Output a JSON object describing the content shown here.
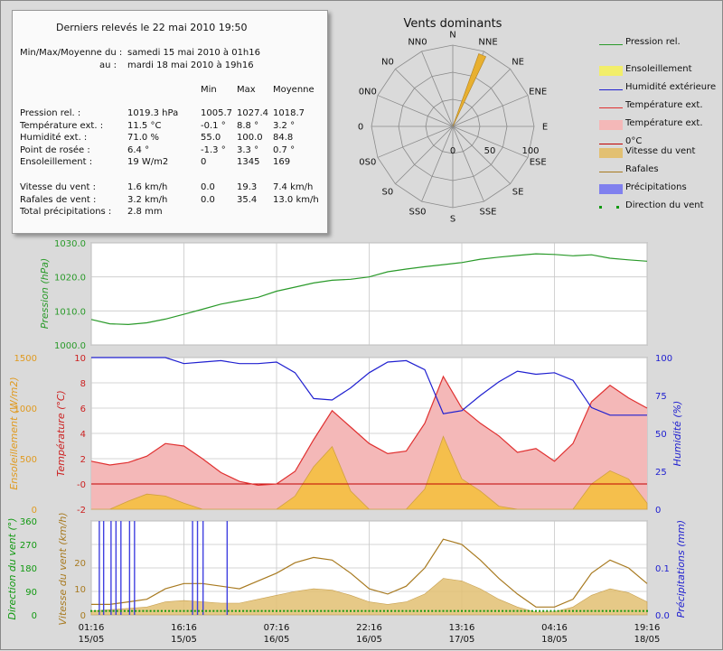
{
  "summary": {
    "title": "Derniers relevés le 22 mai 2010 19:50",
    "period_label_from": "Min/Max/Moyenne du :",
    "period_from": "samedi 15 mai 2010 à 01h16",
    "period_label_to": "au :",
    "period_to": "mardi 18 mai 2010 à 19h16",
    "headers": [
      "Min",
      "Max",
      "Moyenne"
    ],
    "rows": [
      {
        "label": "Pression rel. :",
        "current": "1019.3 hPa",
        "min": "1005.7",
        "max": "1027.4",
        "avg": "1018.7"
      },
      {
        "label": "Température ext. :",
        "current": "11.5 °C",
        "min": "-0.1 °",
        "max": "8.8 °",
        "avg": "3.2 °"
      },
      {
        "label": "Humidité ext. :",
        "current": "71.0 %",
        "min": "55.0",
        "max": "100.0",
        "avg": "84.8"
      },
      {
        "label": "Point de rosée :",
        "current": "6.4 °",
        "min": "-1.3 °",
        "max": "3.3 °",
        "avg": "0.7 °"
      },
      {
        "label": "Ensoleillement :",
        "current": "19 W/m2",
        "min": "0",
        "max": "1345",
        "avg": "169"
      }
    ],
    "wind_rows": [
      {
        "label": "Vitesse du vent :",
        "current": "1.6 km/h",
        "min": "0.0",
        "max": "19.3",
        "avg": "7.4 km/h"
      },
      {
        "label": "Rafales de vent :",
        "current": "3.2 km/h",
        "min": "0.0",
        "max": "35.4",
        "avg": "13.0 km/h"
      },
      {
        "label": "Total précipitations :",
        "current": "2.8 mm",
        "min": "",
        "max": "",
        "avg": ""
      }
    ]
  },
  "wind_rose": {
    "title": "Vents dominants",
    "directions": [
      "N",
      "NNE",
      "NE",
      "ENE",
      "E",
      "ESE",
      "SE",
      "SSE",
      "S",
      "SS0",
      "S0",
      "0S0",
      "0",
      "0N0",
      "N0",
      "NN0"
    ],
    "radial_labels": [
      "0",
      "50",
      "100"
    ],
    "dominant_direction_deg": 22.5,
    "dominant_value": 100,
    "color": "#e8b030"
  },
  "legend": [
    {
      "label": "Pression rel.",
      "type": "line",
      "color": "#2a9a2a"
    },
    {
      "label": "Ensoleillement",
      "type": "box",
      "color": "#f2ee6a"
    },
    {
      "label": "Humidité extérieure",
      "type": "line",
      "color": "#2020d0"
    },
    {
      "label": "Température ext.",
      "type": "line",
      "color": "#e03030"
    },
    {
      "label": "Température ext.",
      "type": "box",
      "color": "#f4b8b8"
    },
    {
      "label": "0°C",
      "type": "line",
      "color": "#c00000"
    },
    {
      "label": "Vitesse du vent",
      "type": "box",
      "color": "#e2c072"
    },
    {
      "label": "Rafales",
      "type": "line",
      "color": "#a87a20"
    },
    {
      "label": "Précipitations",
      "type": "box",
      "color": "#8080ee"
    },
    {
      "label": "Direction du vent",
      "type": "dots",
      "color": "#119911"
    }
  ],
  "x_ticks": [
    {
      "time": "01:16",
      "date": "15/05"
    },
    {
      "time": "16:16",
      "date": "15/05"
    },
    {
      "time": "07:16",
      "date": "16/05"
    },
    {
      "time": "22:16",
      "date": "16/05"
    },
    {
      "time": "13:16",
      "date": "17/05"
    },
    {
      "time": "04:16",
      "date": "18/05"
    },
    {
      "time": "19:16",
      "date": "18/05"
    }
  ],
  "chart_data": [
    {
      "type": "line",
      "title": "",
      "ylabel": "Pression (hPa)",
      "ylim": [
        1000,
        1030
      ],
      "yticks": [
        "1030.0",
        "1020.0",
        "1010.0",
        "1000.0"
      ],
      "x_hours": [
        0,
        3,
        6,
        9,
        12,
        15,
        18,
        21,
        24,
        27,
        30,
        33,
        36,
        39,
        42,
        45,
        48,
        51,
        54,
        57,
        60,
        63,
        66,
        69,
        72,
        75,
        78,
        81,
        84,
        87,
        90
      ],
      "series": [
        {
          "name": "Pression rel.",
          "color": "#2a9a2a",
          "values": [
            1007.5,
            1006.2,
            1006.0,
            1006.5,
            1007.6,
            1009.0,
            1010.5,
            1012.0,
            1013.0,
            1014.0,
            1015.8,
            1017.0,
            1018.2,
            1019.0,
            1019.3,
            1020.0,
            1021.5,
            1022.3,
            1023.0,
            1023.6,
            1024.2,
            1025.2,
            1025.8,
            1026.3,
            1026.8,
            1026.6,
            1026.2,
            1026.5,
            1025.5,
            1025.0,
            1024.6
          ]
        }
      ]
    },
    {
      "type": "area",
      "title": "",
      "ylabel_left_outer": "Ensoleillement (W/m2)",
      "ylabel_left_inner": "Température (°C)",
      "ylabel_right": "Humidité (%)",
      "ylim_sun": [
        0,
        1500
      ],
      "ylim_temp": [
        -2,
        10
      ],
      "ylim_hum": [
        0,
        100
      ],
      "yticks_sun": [
        "1500",
        "1000",
        "500",
        "0"
      ],
      "yticks_temp": [
        "10",
        "8",
        "6",
        "4",
        "2",
        "-0",
        "-2"
      ],
      "yticks_hum": [
        "100",
        "75",
        "50",
        "25",
        "0"
      ],
      "x_hours": [
        0,
        3,
        6,
        9,
        12,
        15,
        18,
        21,
        24,
        27,
        30,
        33,
        36,
        39,
        42,
        45,
        48,
        51,
        54,
        57,
        60,
        63,
        66,
        69,
        72,
        75,
        78,
        81,
        84,
        87,
        90
      ],
      "series": [
        {
          "name": "Température ext.",
          "color": "#e03030",
          "values": [
            1.8,
            1.5,
            1.7,
            2.2,
            3.2,
            3.0,
            2.0,
            0.9,
            0.2,
            -0.1,
            0.0,
            1.0,
            3.5,
            5.8,
            4.5,
            3.2,
            2.4,
            2.6,
            4.8,
            8.5,
            6.0,
            4.8,
            3.8,
            2.5,
            2.8,
            1.8,
            3.2,
            6.5,
            7.8,
            6.8,
            6.0
          ]
        },
        {
          "name": "Humidité extérieure",
          "color": "#2020d0",
          "values": [
            100,
            100,
            100,
            100,
            100,
            96,
            97,
            98,
            96,
            96,
            97,
            90,
            73,
            72,
            80,
            90,
            97,
            98,
            92,
            63,
            65,
            75,
            84,
            91,
            89,
            90,
            85,
            67,
            62,
            62,
            62
          ]
        },
        {
          "name": "Ensoleillement",
          "color": "#f2ee6a",
          "values": [
            0,
            0,
            80,
            150,
            130,
            60,
            0,
            0,
            0,
            0,
            0,
            130,
            420,
            620,
            180,
            0,
            0,
            0,
            200,
            720,
            300,
            180,
            30,
            0,
            0,
            0,
            0,
            250,
            380,
            300,
            60
          ]
        }
      ],
      "zero_line": 0
    },
    {
      "type": "line",
      "title": "",
      "ylabel_left_outer": "Direction du vent (°)",
      "ylabel_left_inner": "Vitesse du vent (km/h)",
      "ylabel_right": "Précipitations (mm)",
      "ylim_dir": [
        0,
        360
      ],
      "ylim_speed": [
        0,
        36
      ],
      "ylim_rain": [
        0,
        0.2
      ],
      "yticks_dir": [
        "360",
        "270",
        "180",
        "90",
        "0"
      ],
      "yticks_speed": [
        "20",
        "10",
        "0"
      ],
      "yticks_rain": [
        "0.1",
        "0.0"
      ],
      "x_hours": [
        0,
        3,
        6,
        9,
        12,
        15,
        18,
        21,
        24,
        27,
        30,
        33,
        36,
        39,
        42,
        45,
        48,
        51,
        54,
        57,
        60,
        63,
        66,
        69,
        72,
        75,
        78,
        81,
        84,
        87,
        90
      ],
      "series": [
        {
          "name": "Rafales",
          "color": "#a87a20",
          "values": [
            4,
            4,
            5,
            6,
            10,
            12,
            12,
            11,
            10,
            13,
            16,
            20,
            22,
            21,
            16,
            10,
            8,
            11,
            18,
            29,
            27,
            21,
            14,
            8,
            3,
            3,
            6,
            16,
            21,
            18,
            12
          ]
        },
        {
          "name": "Vitesse du vent",
          "color": "#e2c072",
          "values": [
            1.5,
            2,
            2.5,
            3,
            5,
            5.5,
            5,
            4.5,
            4.5,
            6,
            7.5,
            9,
            10,
            9.5,
            7.5,
            5,
            4,
            5,
            8,
            14,
            13,
            10,
            6,
            3,
            1,
            1.2,
            3,
            7.5,
            10,
            8.5,
            5
          ]
        },
        {
          "name": "Précipitations",
          "color": "#8080ee",
          "events": [
            {
              "hour": 1.3,
              "mm": 0.2
            },
            {
              "hour": 2.0,
              "mm": 0.2
            },
            {
              "hour": 3.2,
              "mm": 0.2
            },
            {
              "hour": 4.0,
              "mm": 0.2
            },
            {
              "hour": 4.8,
              "mm": 0.2
            },
            {
              "hour": 6.2,
              "mm": 0.2
            },
            {
              "hour": 7.0,
              "mm": 0.2
            },
            {
              "hour": 16.4,
              "mm": 0.2
            },
            {
              "hour": 17.2,
              "mm": 0.2
            },
            {
              "hour": 18.1,
              "mm": 0.2
            },
            {
              "hour": 22.0,
              "mm": 0.2
            }
          ]
        }
      ]
    }
  ]
}
